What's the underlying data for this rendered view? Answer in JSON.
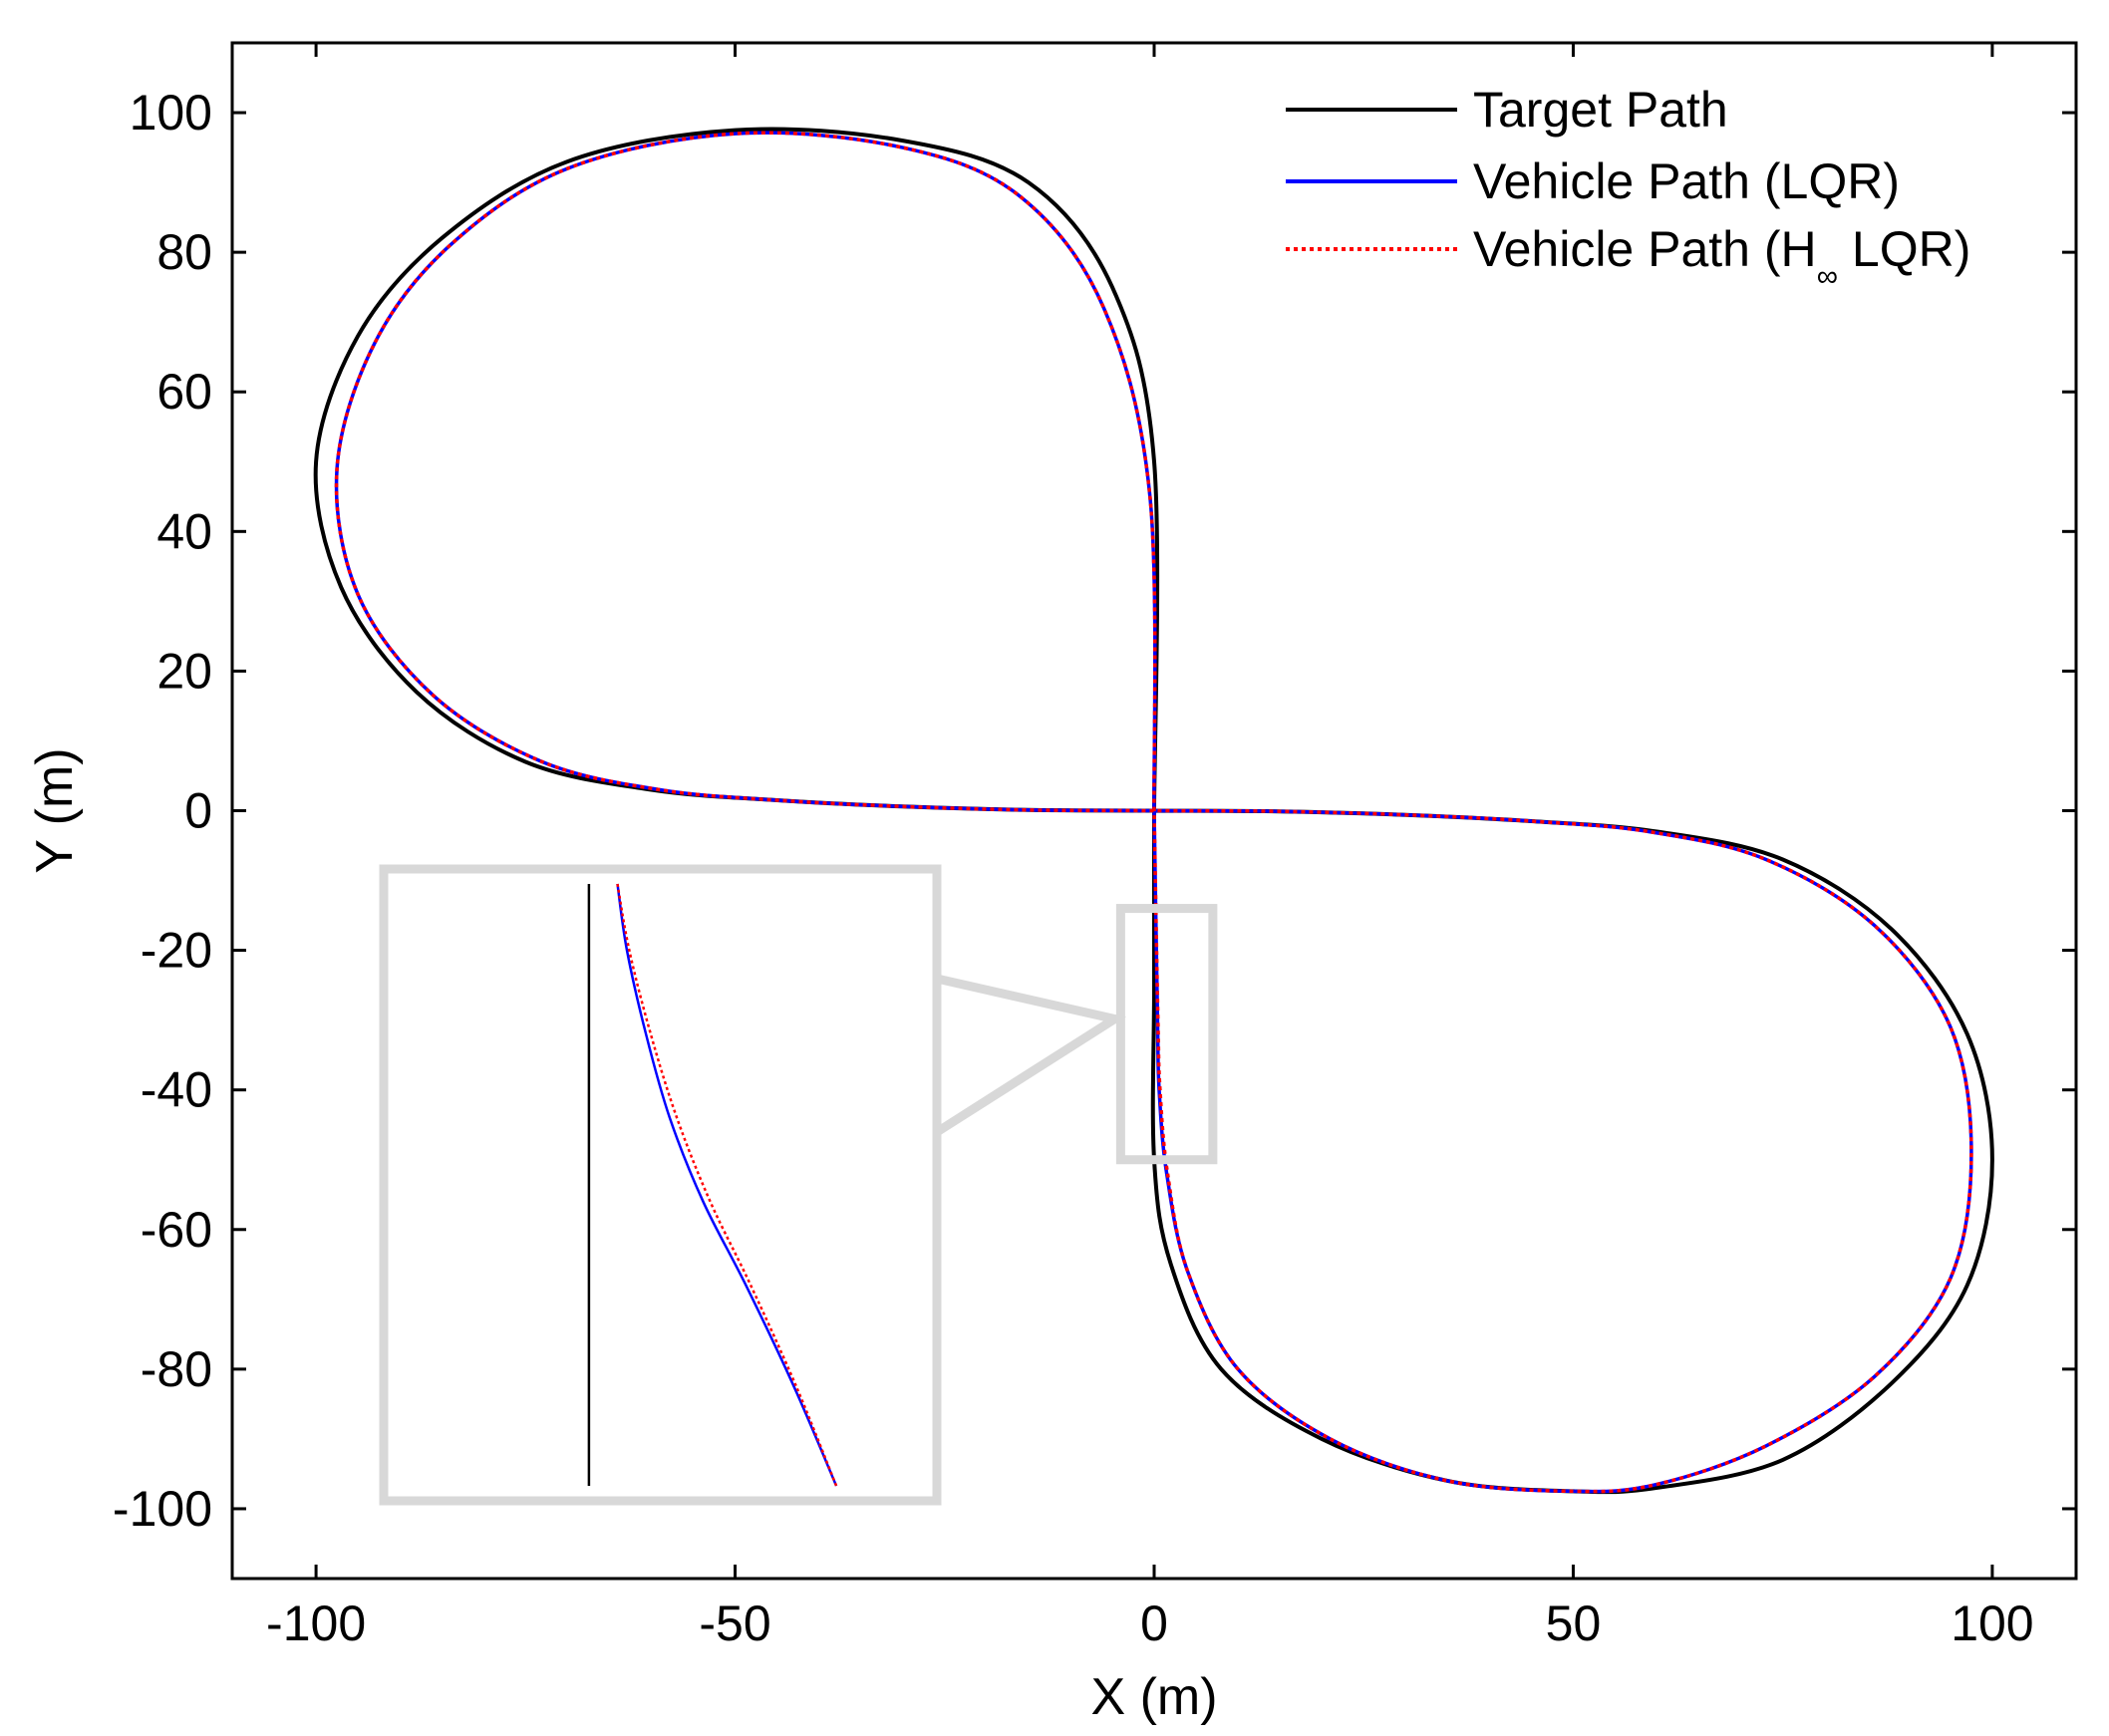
{
  "chart_data": {
    "type": "line",
    "title": "",
    "xlabel": "X (m)",
    "ylabel": "Y (m)",
    "xlim": [
      -110,
      110
    ],
    "ylim": [
      -110,
      110
    ],
    "xticks": [
      -100,
      -50,
      0,
      50,
      100
    ],
    "yticks": [
      100,
      80,
      60,
      40,
      20,
      0,
      -20,
      -40,
      -60,
      -80,
      -100
    ],
    "xtick_labels": [
      "-100",
      "-50",
      "0",
      "50",
      "100"
    ],
    "ytick_labels": [
      "100",
      "80",
      "60",
      "40",
      "20",
      "0",
      "-20",
      "-40",
      "-60",
      "-80",
      "-100"
    ],
    "grid": false,
    "legend_position": "top-right",
    "legend": {
      "target": "Target Path",
      "lqr": "Vehicle Path (LQR)",
      "hinf_prefix": "Vehicle Path (H",
      "hinf_sub": "∞",
      "hinf_suffix": " LQR)"
    },
    "series": [
      {
        "name": "Target Path",
        "color": "#000000",
        "style": "solid",
        "x": [
          0,
          0,
          -5,
          -15,
          -30,
          -50,
          -70,
          -85,
          -95,
          -100,
          -97,
          -88,
          -75,
          -60,
          -45,
          -30,
          -15,
          0,
          15,
          30,
          45,
          60,
          75,
          88,
          97,
          100,
          97,
          88,
          75,
          60,
          50,
          35,
          20,
          8,
          2,
          0,
          0,
          0
        ],
        "y": [
          0,
          50,
          75,
          90,
          96,
          97.5,
          93,
          82,
          68,
          50,
          32,
          17,
          7,
          3,
          1.5,
          0.6,
          0.1,
          0,
          -0.1,
          -0.6,
          -1.5,
          -3,
          -7,
          -17,
          -32,
          -50,
          -68,
          -82,
          -93,
          -97,
          -97.5,
          -96,
          -90,
          -80,
          -65,
          -50,
          -25,
          0
        ]
      },
      {
        "name": "Vehicle Path (LQR)",
        "color": "#0000ff",
        "style": "solid",
        "x": [
          0,
          -0.5,
          -6,
          -16,
          -30,
          -50,
          -70,
          -84,
          -93,
          -97.5,
          -95,
          -86,
          -73,
          -59,
          -45,
          -30,
          -15,
          0,
          15,
          30,
          45,
          59,
          73,
          86,
          95,
          97.5,
          95,
          86,
          73,
          60,
          50,
          35,
          21,
          10,
          4,
          1.5,
          0.6,
          0.4,
          0
        ],
        "y": [
          0,
          45,
          72,
          88,
          95,
          97,
          92,
          81,
          67,
          49,
          31,
          16.5,
          7,
          3,
          1.5,
          0.6,
          0.1,
          0,
          -0.1,
          -0.6,
          -1.5,
          -3,
          -7,
          -16.5,
          -31,
          -49,
          -67,
          -81,
          -91,
          -96.5,
          -97.5,
          -96,
          -90,
          -80,
          -66,
          -52,
          -40,
          -30,
          0
        ]
      },
      {
        "name": "Vehicle Path (H∞ LQR)",
        "color": "#ff0000",
        "style": "dotted",
        "x": [
          0,
          -0.5,
          -6,
          -16,
          -30,
          -50,
          -70,
          -84,
          -93,
          -97.5,
          -95,
          -86,
          -73,
          -59,
          -45,
          -30,
          -15,
          0,
          15,
          30,
          45,
          59,
          73,
          86,
          95,
          97.5,
          95,
          86,
          73,
          60,
          50,
          35,
          21,
          10,
          4,
          1.6,
          0.7,
          0.45,
          0
        ],
        "y": [
          0,
          45,
          72,
          88,
          95,
          97,
          92,
          81,
          67,
          49,
          31,
          16.5,
          7,
          3,
          1.5,
          0.6,
          0.1,
          0,
          -0.1,
          -0.6,
          -1.5,
          -3,
          -7,
          -16.5,
          -31,
          -49,
          -67,
          -81,
          -91,
          -96.5,
          -97.5,
          -96,
          -90,
          -80,
          -66,
          -52,
          -40,
          -30,
          0
        ]
      }
    ],
    "inset": {
      "zoom_region_x": [
        -4,
        7
      ],
      "zoom_region_y": [
        -50,
        -14
      ],
      "series": [
        {
          "name": "Target Path",
          "x": [
            0,
            0
          ],
          "y": [
            -14,
            -50
          ]
        },
        {
          "name": "Vehicle Path (LQR)",
          "x": [
            0.6,
            0.8,
            1.2,
            1.7,
            2.4,
            3.3,
            4.3,
            5.2
          ],
          "y": [
            -14,
            -18,
            -23,
            -28,
            -33,
            -38,
            -44,
            -50
          ]
        },
        {
          "name": "Vehicle Path (H∞ LQR)",
          "x": [
            0.6,
            0.85,
            1.3,
            1.85,
            2.55,
            3.4,
            4.35,
            5.2
          ],
          "y": [
            -14,
            -18,
            -23,
            -28,
            -33,
            -38,
            -44,
            -50
          ]
        }
      ]
    }
  }
}
